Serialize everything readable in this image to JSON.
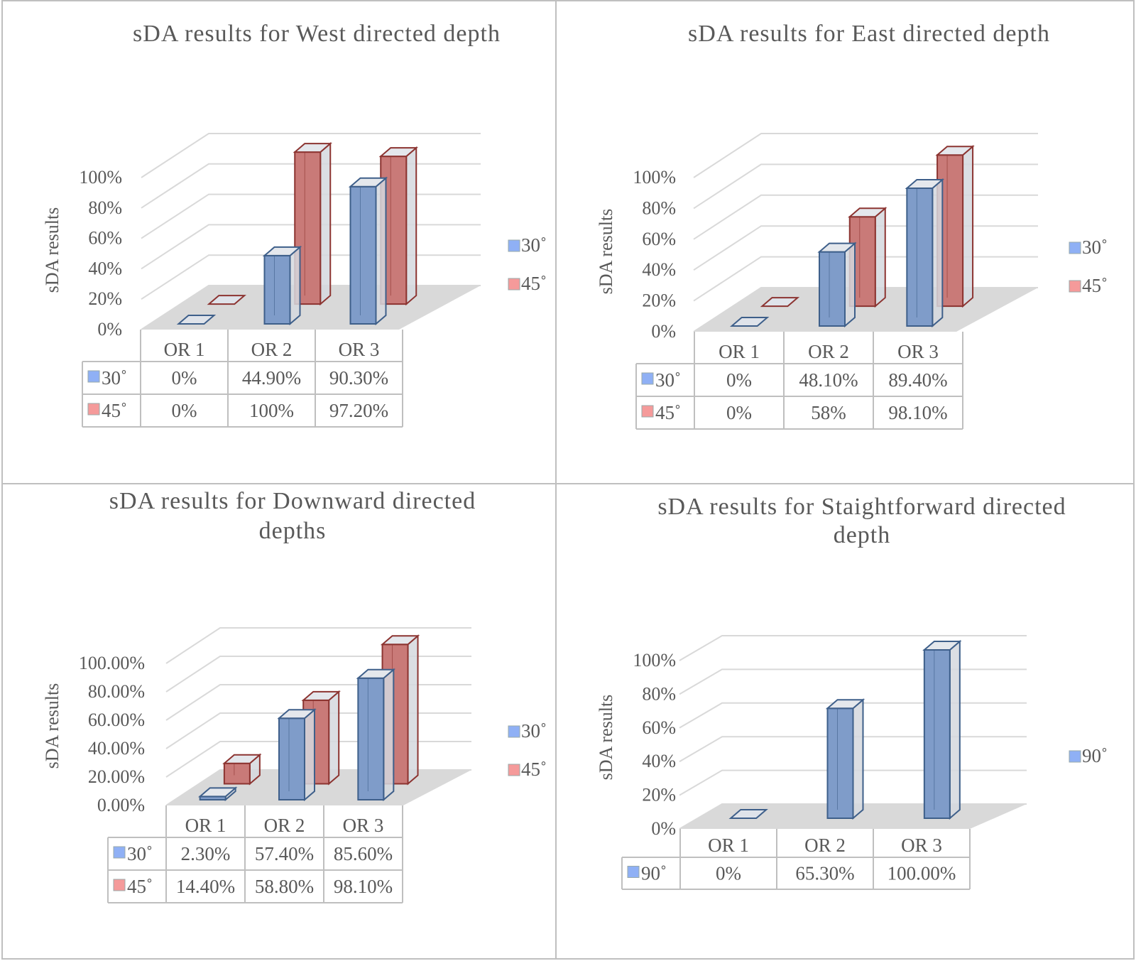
{
  "colors": {
    "series_30_fill": "#7f9cc9",
    "series_30_stroke": "#3e5f8a",
    "series_45_fill": "#c97a78",
    "series_45_stroke": "#8c3431",
    "series_90_fill": "#7f9cc9",
    "legend_30": "#8fb0f5",
    "legend_45": "#f59a9a",
    "floor": "#d9d9d9",
    "grid": "#d9d9d9",
    "table_border": "#bfbfbf"
  },
  "chart_data": [
    {
      "type": "bar",
      "subtype": "3d-clustered-column-with-data-table",
      "title": "sDA results for West directed depth",
      "title_lines": [
        "sDA results for West directed depth"
      ],
      "ylabel": "sDA results",
      "xlabel": "",
      "ylim": [
        0,
        100
      ],
      "yticks": [
        "0%",
        "20%",
        "40%",
        "60%",
        "80%",
        "100%"
      ],
      "categories": [
        "OR 1",
        "OR 2",
        "OR 3"
      ],
      "legend_position": "right",
      "series": [
        {
          "name": "30˚",
          "values": [
            0,
            44.9,
            90.3
          ],
          "labels": [
            "0%",
            "44.90%",
            "90.30%"
          ]
        },
        {
          "name": "45˚",
          "values": [
            0,
            100,
            97.2
          ],
          "labels": [
            "0%",
            "100%",
            "97.20%"
          ]
        }
      ]
    },
    {
      "type": "bar",
      "subtype": "3d-clustered-column-with-data-table",
      "title": "sDA results for East directed depth",
      "title_lines": [
        "sDA results for East directed depth"
      ],
      "ylabel": "sDA results",
      "xlabel": "",
      "ylim": [
        0,
        100
      ],
      "yticks": [
        "0%",
        "20%",
        "40%",
        "60%",
        "80%",
        "100%"
      ],
      "categories": [
        "OR 1",
        "OR 2",
        "OR 3"
      ],
      "legend_position": "right",
      "series": [
        {
          "name": "30˚",
          "values": [
            0,
            48.1,
            89.4
          ],
          "labels": [
            "0%",
            "48.10%",
            "89.40%"
          ]
        },
        {
          "name": "45˚",
          "values": [
            0,
            58,
            98.1
          ],
          "labels": [
            "0%",
            "58%",
            "98.10%"
          ]
        }
      ]
    },
    {
      "type": "bar",
      "subtype": "3d-clustered-column-with-data-table",
      "title": "sDA results for Downward directed depths",
      "title_lines": [
        "sDA results for Downward directed",
        "depths"
      ],
      "ylabel": "sDA results",
      "xlabel": "",
      "ylim": [
        0,
        100
      ],
      "yticks": [
        "0.00%",
        "20.00%",
        "40.00%",
        "60.00%",
        "80.00%",
        "100.00%"
      ],
      "categories": [
        "OR 1",
        "OR 2",
        "OR 3"
      ],
      "legend_position": "right",
      "series": [
        {
          "name": "30˚",
          "values": [
            2.3,
            57.4,
            85.6
          ],
          "labels": [
            "2.30%",
            "57.40%",
            "85.60%"
          ]
        },
        {
          "name": "45˚",
          "values": [
            14.4,
            58.8,
            98.1
          ],
          "labels": [
            "14.40%",
            "58.80%",
            "98.10%"
          ]
        }
      ]
    },
    {
      "type": "bar",
      "subtype": "3d-column-with-data-table",
      "title": "sDA results for Staightforward directed depth",
      "title_lines": [
        "sDA results for Staightforward directed",
        "depth"
      ],
      "ylabel": "sDA results",
      "xlabel": "",
      "ylim": [
        0,
        100
      ],
      "yticks": [
        "0%",
        "20%",
        "40%",
        "60%",
        "80%",
        "100%"
      ],
      "categories": [
        "OR 1",
        "OR 2",
        "OR 3"
      ],
      "legend_position": "right",
      "series": [
        {
          "name": "90˚",
          "values": [
            0,
            65.3,
            100
          ],
          "labels": [
            "0%",
            "65.30%",
            "100.00%"
          ]
        }
      ]
    }
  ]
}
